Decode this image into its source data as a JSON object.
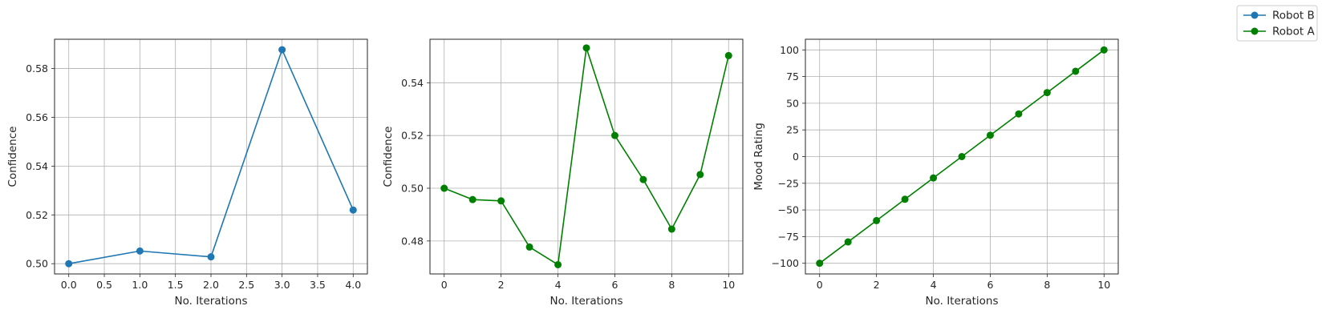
{
  "chart_data": [
    {
      "type": "line",
      "xlabel": "No. Iterations",
      "ylabel": "Confidence",
      "xlim": [
        -0.2,
        4.2
      ],
      "ylim": [
        0.4958,
        0.592
      ],
      "xticks": [
        0.0,
        0.5,
        1.0,
        1.5,
        2.0,
        2.5,
        3.0,
        3.5,
        4.0
      ],
      "xtick_labels": [
        "0.0",
        "0.5",
        "1.0",
        "1.5",
        "2.0",
        "2.5",
        "3.0",
        "3.5",
        "4.0"
      ],
      "yticks": [
        0.5,
        0.52,
        0.54,
        0.56,
        0.58
      ],
      "ytick_labels": [
        "0.50",
        "0.52",
        "0.54",
        "0.56",
        "0.58"
      ],
      "grid": true,
      "series": [
        {
          "name": "Robot B",
          "color": "#1f77b4",
          "marker": "circle",
          "x": [
            0,
            1,
            2,
            3,
            4
          ],
          "values": [
            0.5,
            0.5052,
            0.5028,
            0.5877,
            0.522
          ]
        }
      ]
    },
    {
      "type": "line",
      "xlabel": "No. Iterations",
      "ylabel": "Confidence",
      "xlim": [
        -0.5,
        10.5
      ],
      "ylim": [
        0.4675,
        0.5565
      ],
      "xticks": [
        0,
        2,
        4,
        6,
        8,
        10
      ],
      "xtick_labels": [
        "0",
        "2",
        "4",
        "6",
        "8",
        "10"
      ],
      "yticks": [
        0.48,
        0.5,
        0.52,
        0.54
      ],
      "ytick_labels": [
        "0.48",
        "0.50",
        "0.52",
        "0.54"
      ],
      "grid": true,
      "series": [
        {
          "name": "Robot A",
          "color": "#008000",
          "marker": "circle",
          "x": [
            0,
            1,
            2,
            3,
            4,
            5,
            6,
            7,
            8,
            9,
            10
          ],
          "values": [
            0.5,
            0.4957,
            0.4952,
            0.4777,
            0.471,
            0.5532,
            0.52,
            0.5033,
            0.4845,
            0.5052,
            0.5503
          ]
        }
      ]
    },
    {
      "type": "line",
      "xlabel": "No. Iterations",
      "ylabel": "Mood Rating",
      "xlim": [
        -0.5,
        10.5
      ],
      "ylim": [
        -110,
        110
      ],
      "xticks": [
        0,
        2,
        4,
        6,
        8,
        10
      ],
      "xtick_labels": [
        "0",
        "2",
        "4",
        "6",
        "8",
        "10"
      ],
      "yticks": [
        -100,
        -75,
        -50,
        -25,
        0,
        25,
        50,
        75,
        100
      ],
      "ytick_labels": [
        "−100",
        "−75",
        "−50",
        "−25",
        "0",
        "25",
        "50",
        "75",
        "100"
      ],
      "grid": true,
      "series": [
        {
          "name": "Robot A",
          "color": "#008000",
          "marker": "circle",
          "x": [
            0,
            1,
            2,
            3,
            4,
            5,
            6,
            7,
            8,
            9,
            10
          ],
          "values": [
            -100,
            -80,
            -60,
            -40,
            -20,
            0,
            20,
            40,
            60,
            80,
            100
          ]
        }
      ]
    }
  ],
  "legend": {
    "placement": "top-right",
    "entries": [
      {
        "label": "Robot B",
        "color": "#1f77b4"
      },
      {
        "label": "Robot A",
        "color": "#008000"
      }
    ]
  }
}
